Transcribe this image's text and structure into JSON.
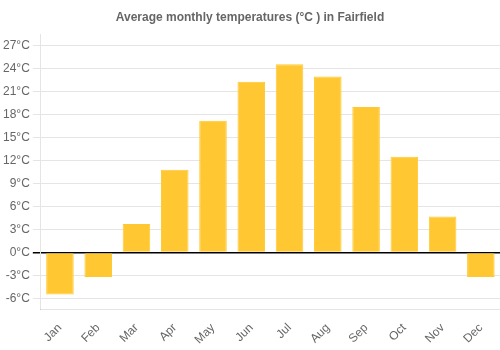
{
  "chart_data": {
    "type": "bar",
    "title": "Average monthly temperatures (°C ) in Fairfield",
    "categories": [
      "Jan",
      "Feb",
      "Mar",
      "Apr",
      "May",
      "Jun",
      "Jul",
      "Aug",
      "Sep",
      "Oct",
      "Nov",
      "Dec"
    ],
    "values": [
      -5.5,
      -3.2,
      3.7,
      10.8,
      17.2,
      22.3,
      24.6,
      23.0,
      19.0,
      12.5,
      4.7,
      -3.2
    ],
    "color": "#FFC832",
    "ylim": [
      -7.5,
      28.5
    ],
    "yticks": [
      {
        "value": -6,
        "label": "-6°C"
      },
      {
        "value": -3,
        "label": "-3°C"
      },
      {
        "value": 0,
        "label": "0°C"
      },
      {
        "value": 3,
        "label": "3°C"
      },
      {
        "value": 6,
        "label": "6°C"
      },
      {
        "value": 9,
        "label": "9°C"
      },
      {
        "value": 12,
        "label": "12°C"
      },
      {
        "value": 15,
        "label": "15°C"
      },
      {
        "value": 18,
        "label": "18°C"
      },
      {
        "value": 21,
        "label": "21°C"
      },
      {
        "value": 24,
        "label": "24°C"
      },
      {
        "value": 27,
        "label": "27°C"
      }
    ],
    "grid": true
  }
}
